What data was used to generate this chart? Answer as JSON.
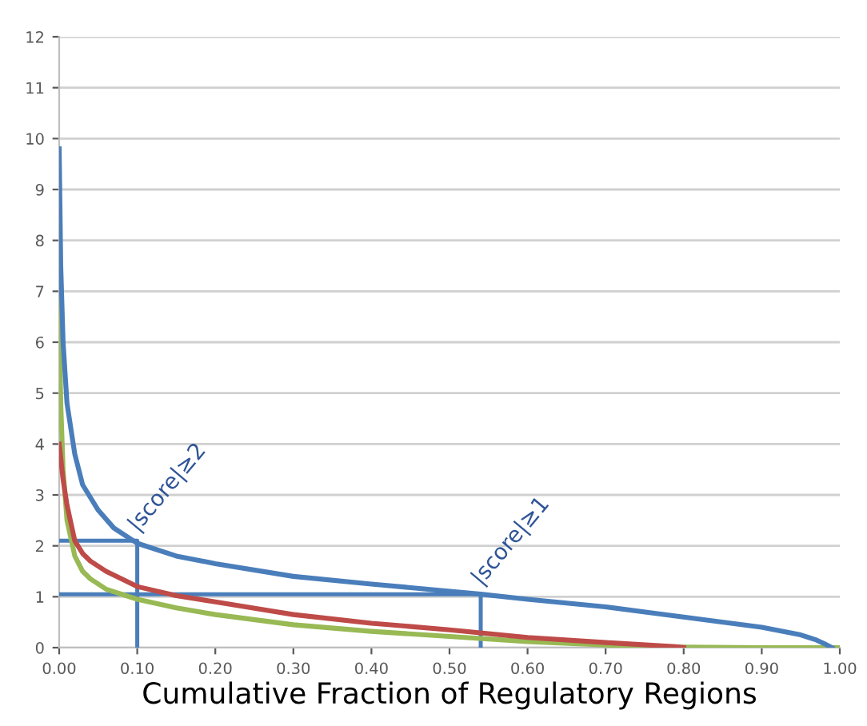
{
  "chart_data": {
    "type": "line",
    "xlabel": "Cumulative Fraction of Regulatory Regions",
    "xlim": [
      0,
      1
    ],
    "xticks": [
      {
        "value": 0,
        "label": "0.00"
      },
      {
        "value": 0.1,
        "label": "0.10"
      },
      {
        "value": 0.2,
        "label": "0.20"
      },
      {
        "value": 0.3,
        "label": "0.30"
      },
      {
        "value": 0.4,
        "label": "0.40"
      },
      {
        "value": 0.5,
        "label": "0.50"
      },
      {
        "value": 0.6,
        "label": "0.60"
      },
      {
        "value": 0.7,
        "label": "0.70"
      },
      {
        "value": 0.8,
        "label": "0.80"
      },
      {
        "value": 0.9,
        "label": "0.90"
      },
      {
        "value": 1,
        "label": "1.00"
      }
    ],
    "ylim": [
      0,
      12
    ],
    "yticks": [
      0,
      1,
      2,
      3,
      4,
      5,
      6,
      7,
      8,
      9,
      10,
      11,
      12
    ],
    "grid": "y",
    "marker": "none",
    "line_style": "solid",
    "series": [
      {
        "color": "#4a7ebb",
        "x": [
          0,
          0.002,
          0.005,
          0.01,
          0.02,
          0.03,
          0.05,
          0.07,
          0.1,
          0.15,
          0.2,
          0.3,
          0.4,
          0.54,
          0.6,
          0.7,
          0.8,
          0.9,
          0.95,
          0.97,
          0.98,
          0.99
        ],
        "values": [
          9.8,
          7.5,
          6.0,
          4.8,
          3.8,
          3.2,
          2.7,
          2.35,
          2.05,
          1.8,
          1.65,
          1.4,
          1.25,
          1.05,
          0.95,
          0.8,
          0.6,
          0.4,
          0.25,
          0.15,
          0.08,
          0
        ]
      },
      {
        "color": "#be4b48",
        "x": [
          0,
          0.005,
          0.01,
          0.02,
          0.03,
          0.04,
          0.06,
          0.1,
          0.15,
          0.2,
          0.3,
          0.4,
          0.5,
          0.6,
          0.7,
          0.79,
          0.8
        ],
        "values": [
          4.0,
          3.3,
          2.8,
          2.1,
          1.85,
          1.7,
          1.5,
          1.2,
          1.02,
          0.9,
          0.65,
          0.48,
          0.35,
          0.2,
          0.1,
          0.02,
          0
        ]
      },
      {
        "color": "#98b954",
        "x": [
          0,
          0.002,
          0.005,
          0.01,
          0.02,
          0.03,
          0.04,
          0.06,
          0.1,
          0.15,
          0.2,
          0.3,
          0.4,
          0.5,
          0.6,
          0.7,
          0.8,
          0.9,
          1.0
        ],
        "values": [
          6.8,
          4.8,
          3.5,
          2.5,
          1.8,
          1.5,
          1.35,
          1.15,
          0.95,
          0.78,
          0.65,
          0.45,
          0.32,
          0.22,
          0.12,
          0.05,
          0.01,
          0,
          0
        ]
      },
      {
        "color": "#4a7ebb",
        "x": [
          0,
          0.1,
          0.1
        ],
        "values": [
          2.1,
          2.1,
          0
        ]
      },
      {
        "color": "#4a7ebb",
        "x": [
          0,
          0.54,
          0.54
        ],
        "values": [
          1.05,
          1.05,
          0
        ]
      }
    ],
    "annotations": [
      {
        "text": "|score|≥2",
        "x": 0.1,
        "y": 2.1
      },
      {
        "text": "|score|≥1",
        "x": 0.54,
        "y": 1.05
      }
    ]
  }
}
